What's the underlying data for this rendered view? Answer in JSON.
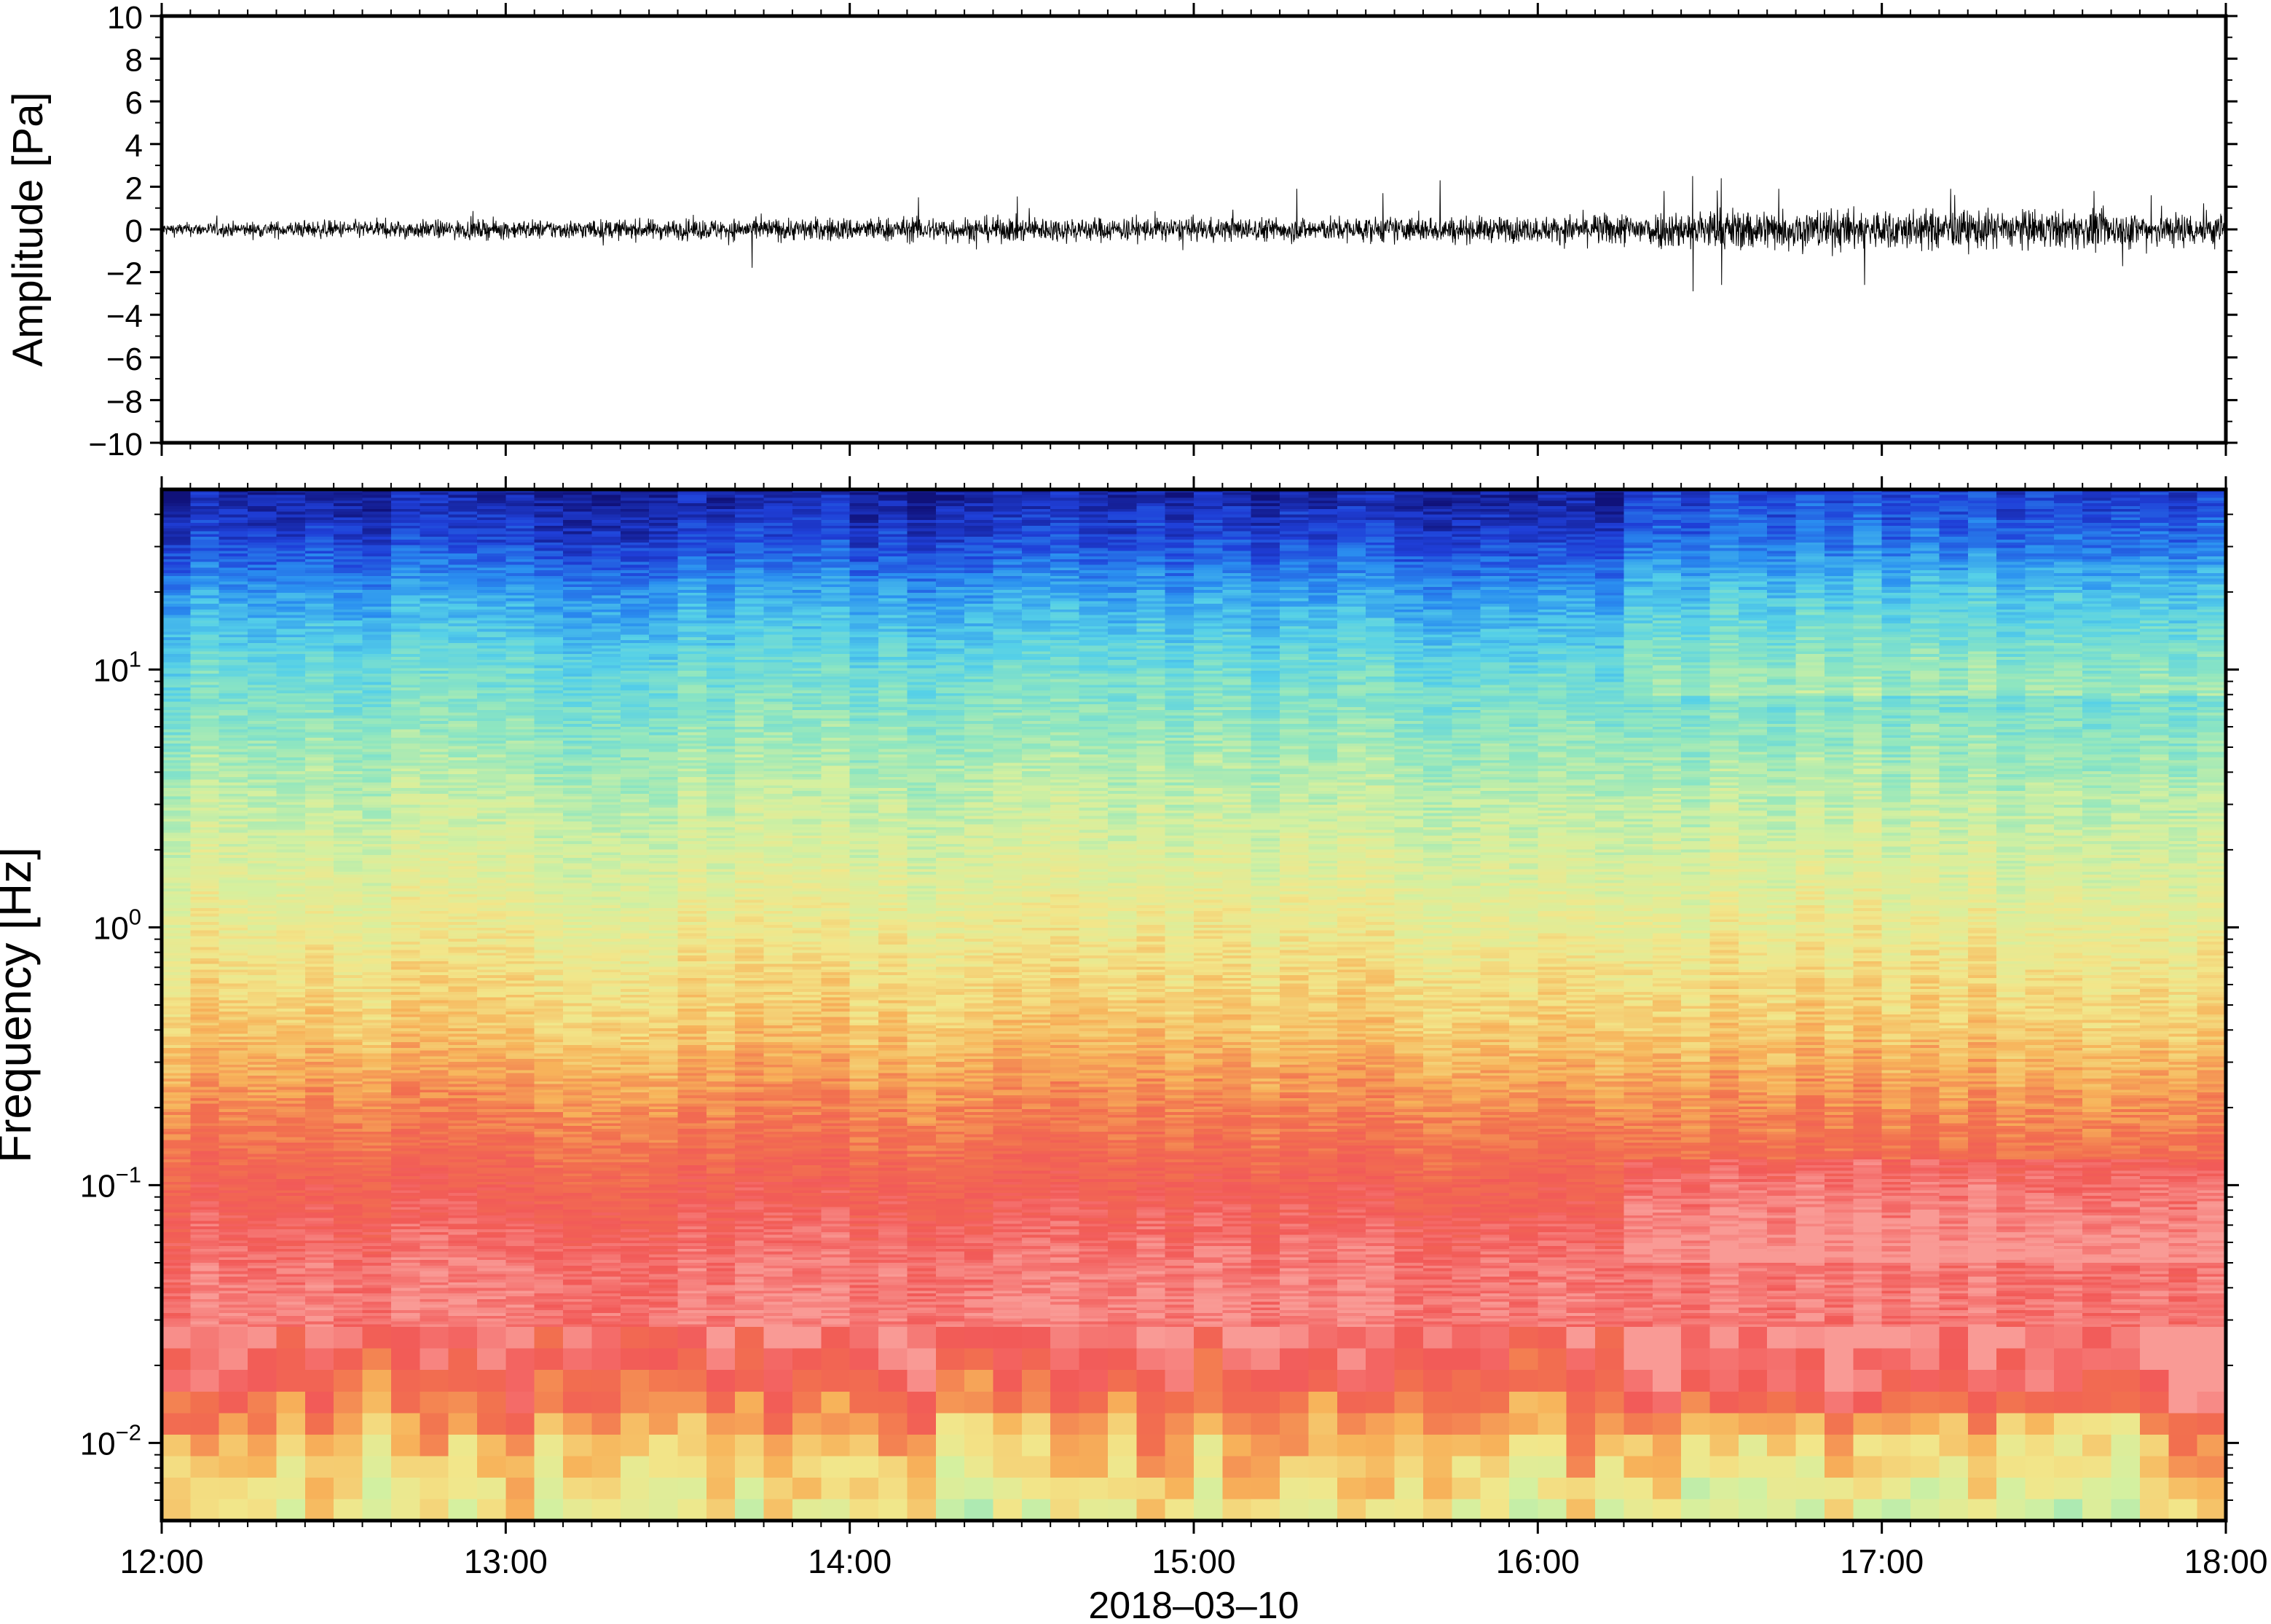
{
  "chart_data": [
    {
      "type": "line",
      "panel": "waveform",
      "ylabel": "Amplitude [Pa]",
      "ylim": [
        -10,
        10
      ],
      "yticks": [
        10,
        8,
        6,
        4,
        2,
        0,
        -2,
        -4,
        -6,
        -8,
        -10
      ],
      "ytick_labels": [
        "10",
        "8",
        "6",
        "4",
        "2",
        "0",
        "−2",
        "−4",
        "−6",
        "−8",
        "−10"
      ],
      "x_range": [
        "12:00",
        "18:00"
      ],
      "envelope_hours": [
        12.0,
        12.5,
        13.0,
        13.5,
        14.0,
        14.5,
        15.0,
        15.5,
        16.0,
        16.3,
        16.5,
        17.0,
        17.5,
        18.0
      ],
      "envelope_pa": [
        0.5,
        0.7,
        0.75,
        0.8,
        0.95,
        1.0,
        0.9,
        1.0,
        1.0,
        1.4,
        1.7,
        1.6,
        1.5,
        1.4
      ],
      "peak_events": [
        {
          "time": "13:43",
          "min": -1.8
        },
        {
          "time": "14:12",
          "max": 1.5
        },
        {
          "time": "15:18",
          "max": 1.9
        },
        {
          "time": "15:33",
          "max": 1.7
        },
        {
          "time": "15:43",
          "max": 2.3
        },
        {
          "time": "16:22",
          "max": 1.8
        },
        {
          "time": "16:27",
          "max": 2.5,
          "min": -2.9
        },
        {
          "time": "16:32",
          "max": 2.4,
          "min": -2.6
        },
        {
          "time": "16:42",
          "max": 1.9
        },
        {
          "time": "16:57",
          "min": -2.6
        },
        {
          "time": "17:12",
          "max": 1.9
        },
        {
          "time": "17:37",
          "max": 1.8
        },
        {
          "time": "17:47",
          "max": 1.6
        }
      ]
    },
    {
      "type": "heatmap",
      "panel": "spectrogram",
      "ylabel": "Frequency [Hz]",
      "xlabel": "2018–03–10",
      "y_scale": "log",
      "ylim_hz": [
        0.005,
        50
      ],
      "ytick_labels": [
        {
          "base": "10",
          "exp": "1",
          "value": 10
        },
        {
          "base": "10",
          "exp": "0",
          "value": 1
        },
        {
          "base": "10",
          "exp": "−1",
          "value": 0.1
        },
        {
          "base": "10",
          "exp": "−2",
          "value": 0.01
        }
      ],
      "xtick_labels": [
        "12:00",
        "13:00",
        "14:00",
        "15:00",
        "16:00",
        "17:00",
        "18:00"
      ],
      "time_range_hours": [
        12,
        18
      ],
      "colormap": [
        "#10127a",
        "#1f3fd8",
        "#2a8ff0",
        "#55d0e8",
        "#8fe6c0",
        "#d4f0a0",
        "#f2e68a",
        "#f7b35a",
        "#f2704f",
        "#f25a58",
        "#f99a95"
      ],
      "power_profile_log10f": [
        -2.3,
        -2.0,
        -1.7,
        -1.5,
        -1.3,
        -1.0,
        -0.7,
        -0.4,
        0.0,
        0.5,
        1.0,
        1.3,
        1.5,
        1.7
      ],
      "power_profile_level": [
        0.55,
        0.68,
        0.88,
        0.96,
        0.94,
        0.86,
        0.76,
        0.66,
        0.57,
        0.47,
        0.34,
        0.22,
        0.1,
        0.03
      ],
      "high_activity_start": "16:15"
    }
  ]
}
